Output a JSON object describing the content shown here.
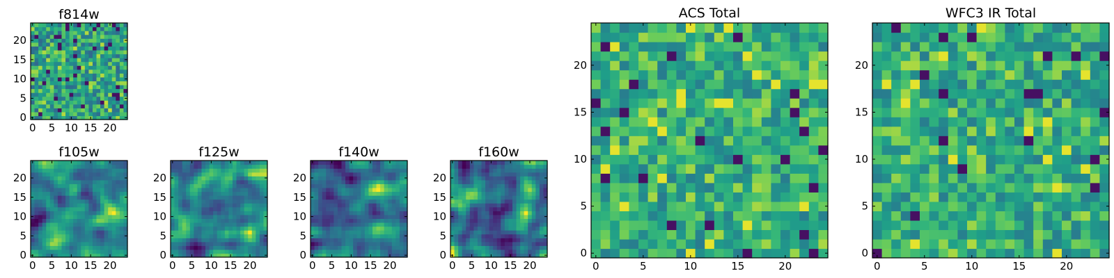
{
  "chart_data": [
    {
      "id": "f814w",
      "type": "heatmap",
      "title": "f814w",
      "grid_size": 25,
      "seed": 814,
      "xlim": [
        0,
        25
      ],
      "ylim": [
        0,
        25
      ],
      "xticks": [
        0,
        5,
        10,
        15,
        20
      ],
      "yticks": [
        0,
        5,
        10,
        15,
        20
      ],
      "xtick_labels": [
        "0",
        "5",
        "10",
        "15",
        "20"
      ],
      "ytick_labels": [
        "0",
        "5",
        "10",
        "15",
        "20"
      ],
      "colormap": "viridis",
      "pattern": "noise"
    },
    {
      "id": "f105w",
      "type": "heatmap",
      "title": "f105w",
      "grid_size": 25,
      "seed": 105,
      "xlim": [
        0,
        25
      ],
      "ylim": [
        0,
        25
      ],
      "xticks": [
        0,
        5,
        10,
        15,
        20
      ],
      "yticks": [
        0,
        5,
        10,
        15,
        20
      ],
      "xtick_labels": [
        "0",
        "5",
        "10",
        "15",
        "20"
      ],
      "ytick_labels": [
        "0",
        "5",
        "10",
        "15",
        "20"
      ],
      "colormap": "viridis",
      "pattern": "smooth"
    },
    {
      "id": "f125w",
      "type": "heatmap",
      "title": "f125w",
      "grid_size": 25,
      "seed": 125,
      "xlim": [
        0,
        25
      ],
      "ylim": [
        0,
        25
      ],
      "xticks": [
        0,
        5,
        10,
        15,
        20
      ],
      "yticks": [
        0,
        5,
        10,
        15,
        20
      ],
      "xtick_labels": [
        "0",
        "5",
        "10",
        "15",
        "20"
      ],
      "ytick_labels": [
        "0",
        "5",
        "10",
        "15",
        "20"
      ],
      "colormap": "viridis",
      "pattern": "smooth"
    },
    {
      "id": "f140w",
      "type": "heatmap",
      "title": "f140w",
      "grid_size": 25,
      "seed": 140,
      "xlim": [
        0,
        25
      ],
      "ylim": [
        0,
        25
      ],
      "xticks": [
        0,
        5,
        10,
        15,
        20
      ],
      "yticks": [
        0,
        5,
        10,
        15,
        20
      ],
      "xtick_labels": [
        "0",
        "5",
        "10",
        "15",
        "20"
      ],
      "ytick_labels": [
        "0",
        "5",
        "10",
        "15",
        "20"
      ],
      "colormap": "viridis",
      "pattern": "smooth"
    },
    {
      "id": "f160w",
      "type": "heatmap",
      "title": "f160w",
      "grid_size": 25,
      "seed": 160,
      "xlim": [
        0,
        25
      ],
      "ylim": [
        0,
        25
      ],
      "xticks": [
        0,
        5,
        10,
        15,
        20
      ],
      "yticks": [
        0,
        5,
        10,
        15,
        20
      ],
      "xtick_labels": [
        "0",
        "5",
        "10",
        "15",
        "20"
      ],
      "ytick_labels": [
        "0",
        "5",
        "10",
        "15",
        "20"
      ],
      "colormap": "viridis",
      "pattern": "smooth"
    },
    {
      "id": "acs-total",
      "type": "heatmap",
      "title": "ACS Total",
      "grid_size": 25,
      "seed": 1001,
      "xlim": [
        0,
        25
      ],
      "ylim": [
        0,
        25
      ],
      "xticks": [
        0,
        5,
        10,
        15,
        20
      ],
      "yticks": [
        0,
        5,
        10,
        15,
        20
      ],
      "xtick_labels": [
        "0",
        "5",
        "10",
        "15",
        "20"
      ],
      "ytick_labels": [
        "0",
        "5",
        "10",
        "15",
        "20"
      ],
      "colormap": "viridis",
      "pattern": "bright-noise"
    },
    {
      "id": "wfc3-ir-total",
      "type": "heatmap",
      "title": "WFC3 IR Total",
      "grid_size": 25,
      "seed": 2002,
      "xlim": [
        0,
        25
      ],
      "ylim": [
        0,
        25
      ],
      "xticks": [
        0,
        5,
        10,
        15,
        20
      ],
      "yticks": [
        0,
        5,
        10,
        15,
        20
      ],
      "xtick_labels": [
        "0",
        "5",
        "10",
        "15",
        "20"
      ],
      "ytick_labels": [
        "0",
        "5",
        "10",
        "15",
        "20"
      ],
      "colormap": "viridis",
      "pattern": "bright-noise"
    }
  ]
}
